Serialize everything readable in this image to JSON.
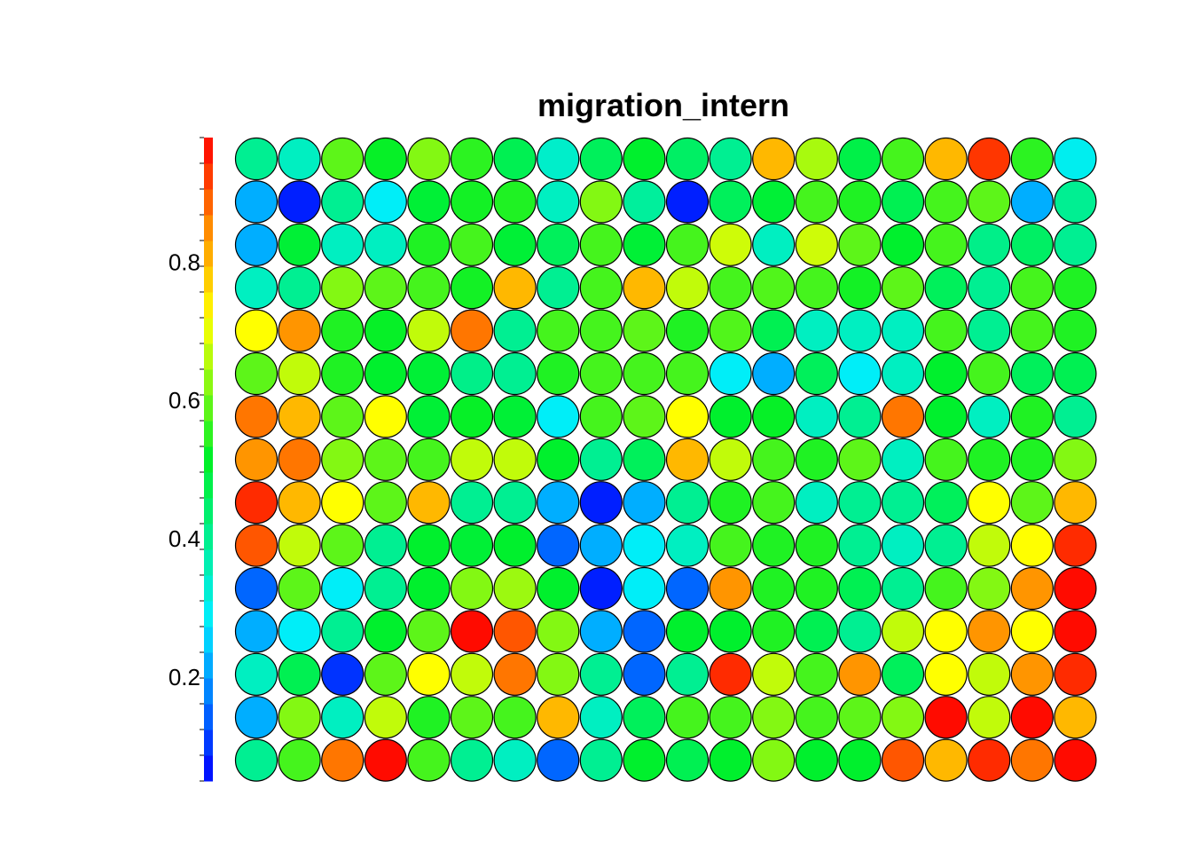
{
  "chart_data": {
    "type": "heatmap",
    "title": "migration_intern",
    "xlabel": "",
    "ylabel": "",
    "grid": false,
    "colorbar": {
      "position": "left",
      "range": [
        0.05,
        0.98
      ],
      "ticks": [
        0.2,
        0.4,
        0.6,
        0.8
      ],
      "tick_labels": [
        "0.2",
        "0.4",
        "0.6",
        "0.8"
      ]
    },
    "rows": 15,
    "cols": 20,
    "values": [
      [
        0.4,
        0.35,
        0.59,
        0.52,
        0.62,
        0.55,
        0.47,
        0.34,
        0.46,
        0.51,
        0.45,
        0.4,
        0.8,
        0.65,
        0.48,
        0.57,
        0.8,
        0.93,
        0.55,
        0.3
      ],
      [
        0.22,
        0.08,
        0.4,
        0.29,
        0.5,
        0.53,
        0.54,
        0.35,
        0.62,
        0.39,
        0.08,
        0.46,
        0.5,
        0.57,
        0.54,
        0.47,
        0.57,
        0.59,
        0.22,
        0.4
      ],
      [
        0.22,
        0.5,
        0.35,
        0.35,
        0.54,
        0.57,
        0.5,
        0.46,
        0.57,
        0.5,
        0.57,
        0.68,
        0.35,
        0.68,
        0.59,
        0.51,
        0.57,
        0.41,
        0.45,
        0.4
      ],
      [
        0.35,
        0.4,
        0.62,
        0.59,
        0.57,
        0.53,
        0.8,
        0.4,
        0.57,
        0.8,
        0.67,
        0.57,
        0.58,
        0.57,
        0.53,
        0.59,
        0.46,
        0.4,
        0.57,
        0.54
      ],
      [
        0.72,
        0.84,
        0.54,
        0.52,
        0.67,
        0.87,
        0.4,
        0.57,
        0.57,
        0.59,
        0.54,
        0.58,
        0.47,
        0.35,
        0.35,
        0.35,
        0.57,
        0.4,
        0.57,
        0.54
      ],
      [
        0.59,
        0.67,
        0.54,
        0.51,
        0.5,
        0.41,
        0.4,
        0.54,
        0.57,
        0.57,
        0.57,
        0.29,
        0.22,
        0.46,
        0.29,
        0.35,
        0.51,
        0.57,
        0.46,
        0.47
      ],
      [
        0.87,
        0.8,
        0.59,
        0.72,
        0.5,
        0.52,
        0.5,
        0.29,
        0.57,
        0.59,
        0.72,
        0.51,
        0.52,
        0.35,
        0.4,
        0.87,
        0.51,
        0.35,
        0.54,
        0.4
      ],
      [
        0.84,
        0.87,
        0.62,
        0.59,
        0.57,
        0.67,
        0.67,
        0.51,
        0.4,
        0.46,
        0.8,
        0.67,
        0.57,
        0.54,
        0.59,
        0.35,
        0.57,
        0.54,
        0.54,
        0.62
      ],
      [
        0.94,
        0.8,
        0.72,
        0.59,
        0.8,
        0.4,
        0.4,
        0.22,
        0.08,
        0.22,
        0.4,
        0.54,
        0.57,
        0.35,
        0.4,
        0.4,
        0.46,
        0.72,
        0.59,
        0.8
      ],
      [
        0.9,
        0.67,
        0.59,
        0.4,
        0.51,
        0.5,
        0.51,
        0.15,
        0.22,
        0.29,
        0.35,
        0.57,
        0.54,
        0.54,
        0.4,
        0.35,
        0.4,
        0.67,
        0.72,
        0.94
      ],
      [
        0.15,
        0.59,
        0.29,
        0.4,
        0.51,
        0.62,
        0.64,
        0.51,
        0.08,
        0.29,
        0.15,
        0.84,
        0.54,
        0.54,
        0.47,
        0.4,
        0.57,
        0.62,
        0.84,
        0.97
      ],
      [
        0.22,
        0.29,
        0.4,
        0.51,
        0.59,
        0.97,
        0.9,
        0.62,
        0.22,
        0.15,
        0.51,
        0.51,
        0.54,
        0.47,
        0.4,
        0.67,
        0.72,
        0.84,
        0.72,
        0.97
      ],
      [
        0.35,
        0.47,
        0.1,
        0.59,
        0.72,
        0.67,
        0.87,
        0.62,
        0.4,
        0.15,
        0.4,
        0.94,
        0.67,
        0.57,
        0.84,
        0.46,
        0.72,
        0.67,
        0.84,
        0.94
      ],
      [
        0.22,
        0.62,
        0.35,
        0.67,
        0.54,
        0.59,
        0.57,
        0.8,
        0.35,
        0.46,
        0.57,
        0.57,
        0.62,
        0.57,
        0.59,
        0.62,
        0.97,
        0.67,
        0.97,
        0.8
      ],
      [
        0.4,
        0.57,
        0.87,
        0.97,
        0.57,
        0.4,
        0.35,
        0.15,
        0.4,
        0.51,
        0.47,
        0.51,
        0.62,
        0.51,
        0.51,
        0.9,
        0.8,
        0.94,
        0.87,
        0.97
      ]
    ]
  }
}
